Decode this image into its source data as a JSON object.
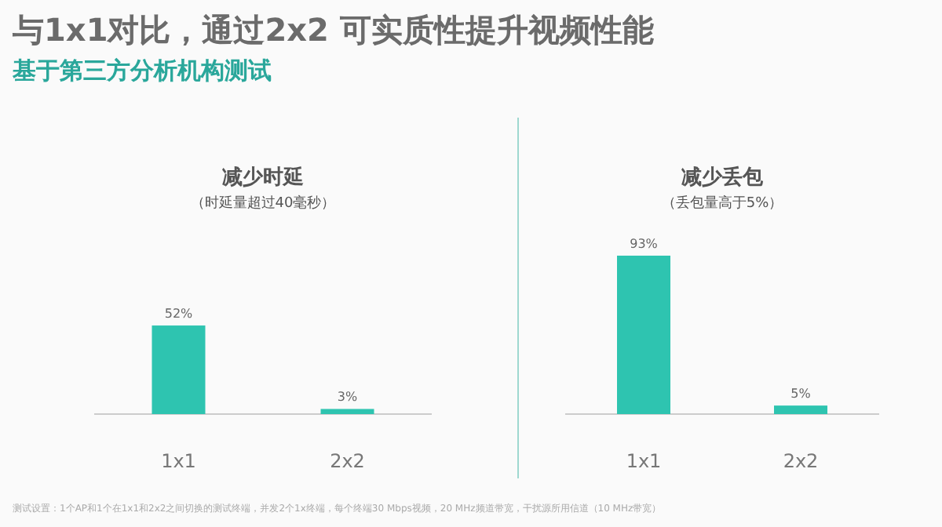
{
  "chart_data": [
    {
      "type": "other",
      "title": "与1x1对比，通过2x2 可实质性提升视频性能",
      "subtitle": "基于第三方分析机构测试",
      "annotations": [
        "测试设置：1个AP和1个在1x1和2x2之间切换的测试终端，并发2个1x终端，每个终端30 Mbps视频，20 MHz频道带宽，干扰源所用信道（10 MHz带宽）"
      ]
    },
    {
      "type": "bar",
      "title": "减少时延",
      "subtitle": "（时延量超过40毫秒）",
      "categories": [
        "1x1",
        "2x2"
      ],
      "values": [
        52,
        3
      ],
      "value_labels": [
        "52%",
        "3%"
      ],
      "color": "#2ec4b0"
    },
    {
      "type": "bar",
      "title": "减少丢包",
      "subtitle": "（丢包量高于5%）",
      "categories": [
        "1x1",
        "2x2"
      ],
      "values": [
        93,
        5
      ],
      "value_labels": [
        "93%",
        "5%"
      ],
      "color": "#2ec4b0"
    }
  ]
}
